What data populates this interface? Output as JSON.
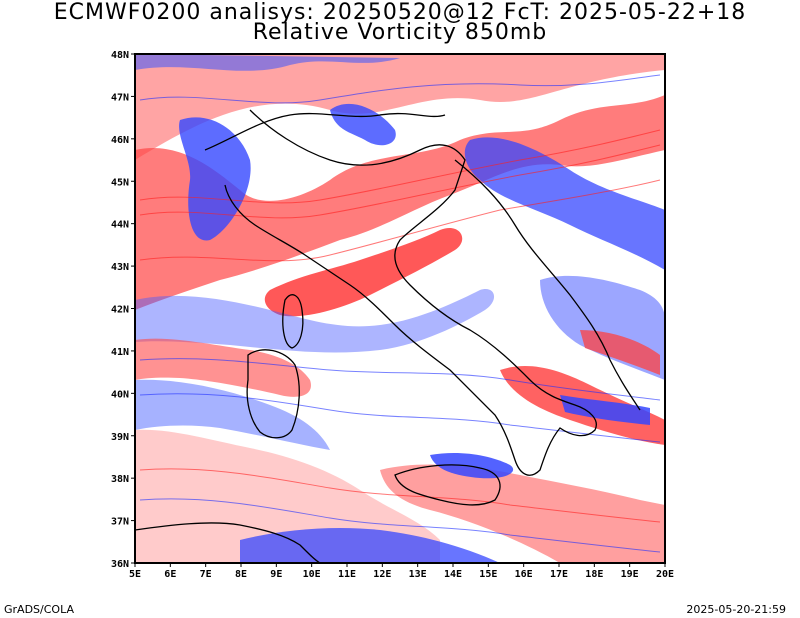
{
  "title": {
    "line1": "ECMWF0200 analisys: 20250520@12 FcT: 2025-05-22+18",
    "line2": "Relative Vorticity 850mb"
  },
  "footer": {
    "left": "GrADS/COLA",
    "right": "2025-05-20-21:59"
  },
  "map": {
    "lon_range": [
      5,
      20
    ],
    "lat_range": [
      36,
      48
    ],
    "lon_labels": [
      "5E",
      "6E",
      "7E",
      "8E",
      "9E",
      "10E",
      "11E",
      "12E",
      "13E",
      "14E",
      "15E",
      "16E",
      "17E",
      "18E",
      "19E",
      "20E"
    ],
    "lat_labels": [
      "36N",
      "37N",
      "38N",
      "39N",
      "40N",
      "41N",
      "42N",
      "43N",
      "44N",
      "45N",
      "46N",
      "47N",
      "48N"
    ],
    "colors": {
      "positive": "#ff3b3b",
      "negative": "#2f45ff",
      "coast": "#000000"
    }
  }
}
